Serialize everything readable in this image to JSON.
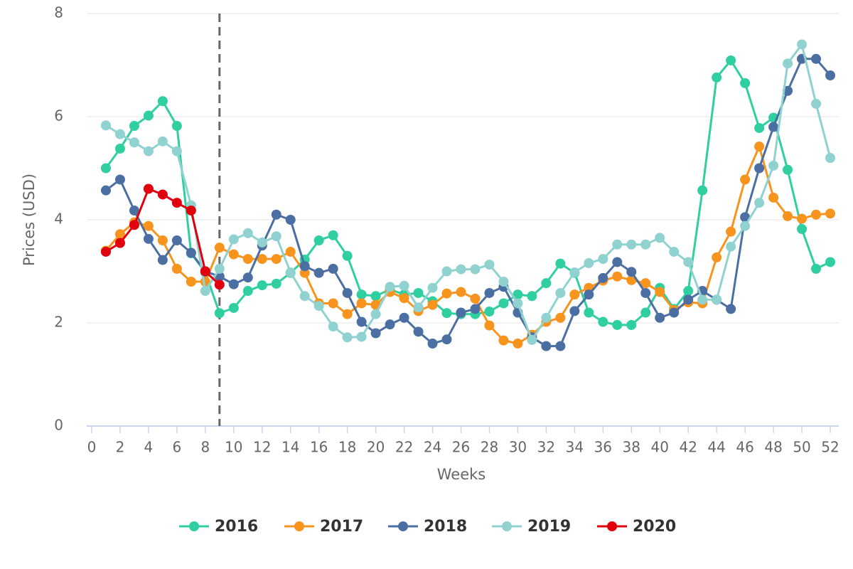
{
  "chart_data": {
    "type": "line",
    "x_label": "Weeks",
    "y_label": "Prices (USD)",
    "x": [
      1,
      2,
      3,
      4,
      5,
      6,
      7,
      8,
      9,
      10,
      11,
      12,
      13,
      14,
      15,
      16,
      17,
      18,
      19,
      20,
      21,
      22,
      23,
      24,
      25,
      26,
      27,
      28,
      29,
      30,
      31,
      32,
      33,
      34,
      35,
      36,
      37,
      38,
      39,
      40,
      41,
      42,
      43,
      44,
      45,
      46,
      47,
      48,
      49,
      50,
      51,
      52
    ],
    "xlim": [
      -0.35,
      52.6
    ],
    "xticks": [
      0,
      2,
      4,
      6,
      8,
      10,
      12,
      14,
      16,
      18,
      20,
      22,
      24,
      26,
      28,
      30,
      32,
      34,
      36,
      38,
      40,
      42,
      44,
      46,
      48,
      50,
      52
    ],
    "ylim": [
      0,
      8
    ],
    "yticks": [
      0,
      2,
      4,
      6,
      8
    ],
    "grid": true,
    "vline": 9,
    "series": [
      {
        "name": "2016",
        "color": "#2fcfa1",
        "values": [
          5.0,
          5.38,
          5.82,
          6.02,
          6.3,
          5.82,
          3.35,
          2.98,
          2.19,
          2.29,
          2.62,
          2.73,
          2.76,
          2.97,
          3.23,
          3.6,
          3.7,
          3.3,
          2.55,
          2.52,
          2.65,
          2.55,
          2.58,
          2.42,
          2.19,
          2.17,
          2.17,
          2.22,
          2.38,
          2.55,
          2.52,
          2.77,
          3.15,
          2.97,
          2.2,
          2.02,
          1.96,
          1.96,
          2.2,
          2.68,
          2.27,
          2.62,
          4.57,
          6.76,
          7.09,
          6.65,
          5.78,
          5.98,
          4.97,
          3.82,
          3.05,
          3.18
        ]
      },
      {
        "name": "2017",
        "color": "#f7941d",
        "values": [
          3.4,
          3.72,
          3.95,
          3.88,
          3.6,
          3.05,
          2.8,
          2.8,
          3.46,
          3.33,
          3.24,
          3.24,
          3.24,
          3.38,
          2.97,
          2.38,
          2.38,
          2.17,
          2.38,
          2.35,
          2.6,
          2.48,
          2.23,
          2.35,
          2.57,
          2.6,
          2.47,
          1.95,
          1.66,
          1.6,
          1.77,
          2.02,
          2.1,
          2.55,
          2.68,
          2.82,
          2.9,
          2.83,
          2.77,
          2.6,
          2.25,
          2.4,
          2.38,
          3.27,
          3.77,
          4.78,
          5.42,
          4.43,
          4.07,
          4.02,
          4.1,
          4.12
        ]
      },
      {
        "name": "2018",
        "color": "#4c6fa3",
        "values": [
          4.57,
          4.78,
          4.18,
          3.63,
          3.22,
          3.6,
          3.36,
          3.0,
          2.9,
          2.75,
          2.88,
          3.5,
          4.1,
          4.0,
          3.1,
          2.97,
          3.05,
          2.58,
          2.02,
          1.8,
          1.97,
          2.1,
          1.83,
          1.6,
          1.68,
          2.2,
          2.27,
          2.58,
          2.7,
          2.2,
          1.72,
          1.55,
          1.55,
          2.23,
          2.55,
          2.87,
          3.18,
          2.99,
          2.58,
          2.1,
          2.2,
          2.45,
          2.62,
          2.45,
          2.27,
          4.05,
          5.0,
          5.8,
          6.5,
          7.12,
          7.12,
          6.8
        ]
      },
      {
        "name": "2019",
        "color": "#8fd2d0",
        "values": [
          5.83,
          5.66,
          5.5,
          5.33,
          5.52,
          5.33,
          4.28,
          2.62,
          3.05,
          3.62,
          3.74,
          3.56,
          3.68,
          2.98,
          2.52,
          2.33,
          1.93,
          1.72,
          1.73,
          2.17,
          2.7,
          2.72,
          2.3,
          2.68,
          3.0,
          3.04,
          3.04,
          3.13,
          2.8,
          2.38,
          1.67,
          2.1,
          2.58,
          2.98,
          3.16,
          3.24,
          3.52,
          3.52,
          3.52,
          3.65,
          3.38,
          3.18,
          2.45,
          2.45,
          3.48,
          3.88,
          4.33,
          5.05,
          7.03,
          7.4,
          6.25,
          5.2
        ]
      },
      {
        "name": "2020",
        "color": "#e0000e",
        "values": [
          3.38,
          3.55,
          3.9,
          4.6,
          4.49,
          4.33,
          4.18,
          3.0,
          2.74,
          null,
          null,
          null,
          null,
          null,
          null,
          null,
          null,
          null,
          null,
          null,
          null,
          null,
          null,
          null,
          null,
          null,
          null,
          null,
          null,
          null,
          null,
          null,
          null,
          null,
          null,
          null,
          null,
          null,
          null,
          null,
          null,
          null,
          null,
          null,
          null,
          null,
          null,
          null,
          null,
          null,
          null,
          null
        ]
      }
    ]
  }
}
